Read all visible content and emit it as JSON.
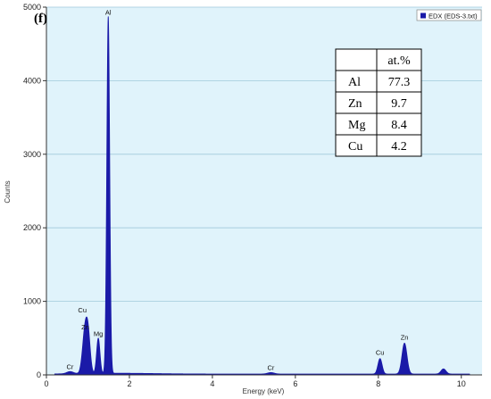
{
  "chart_data": {
    "type": "line",
    "panel_label": "(f)",
    "xlabel": "Energy (keV)",
    "ylabel": "Counts",
    "xlim": [
      0,
      10.5
    ],
    "ylim": [
      0,
      5000
    ],
    "x_ticks": [
      0,
      2,
      4,
      6,
      8,
      10
    ],
    "y_ticks": [
      0,
      1000,
      2000,
      3000,
      4000,
      5000
    ],
    "grid": "horizontal",
    "legend": {
      "position": "top-right",
      "entries": [
        "EDX (EDS-3.txt)"
      ]
    },
    "series": [
      {
        "name": "EDX (EDS-3.txt)",
        "color": "#1a1aa8",
        "background": "#e0f3fb",
        "peaks": [
          {
            "element": "Cr",
            "energy": 0.57,
            "counts": 30,
            "width": 0.08
          },
          {
            "element": "Cu",
            "energy": 0.93,
            "counts": 580,
            "width": 0.06
          },
          {
            "element": "Zn",
            "energy": 1.01,
            "counts": 420,
            "width": 0.05
          },
          {
            "element": "Mg",
            "energy": 1.25,
            "counts": 480,
            "width": 0.04
          },
          {
            "element": "Al",
            "energy": 1.49,
            "counts": 4850,
            "width": 0.035
          },
          {
            "element": "Cr",
            "energy": 5.41,
            "counts": 20,
            "width": 0.08
          },
          {
            "element": "Cu",
            "energy": 8.04,
            "counts": 210,
            "width": 0.05
          },
          {
            "element": "Zn",
            "energy": 8.63,
            "counts": 420,
            "width": 0.06
          },
          {
            "element": "",
            "energy": 9.57,
            "counts": 70,
            "width": 0.06
          }
        ]
      }
    ],
    "annotations": [
      {
        "text": "Al",
        "energy": 1.49,
        "counts": 4850
      },
      {
        "text": "Cu",
        "energy": 0.93,
        "counts": 580
      },
      {
        "text": "Zn",
        "energy": 0.98,
        "counts": 460
      },
      {
        "text": "Mg",
        "energy": 1.25,
        "counts": 480
      },
      {
        "text": "Cr",
        "energy": 0.57,
        "counts": 30
      },
      {
        "text": "Cr",
        "energy": 5.41,
        "counts": 20
      },
      {
        "text": "Cu",
        "energy": 8.04,
        "counts": 210
      },
      {
        "text": "Zn",
        "energy": 8.63,
        "counts": 420
      }
    ]
  },
  "composition_table": {
    "header": [
      "",
      "at.%"
    ],
    "rows": [
      [
        "Al",
        "77.3"
      ],
      [
        "Zn",
        "9.7"
      ],
      [
        "Mg",
        "8.4"
      ],
      [
        "Cu",
        "4.2"
      ]
    ]
  }
}
